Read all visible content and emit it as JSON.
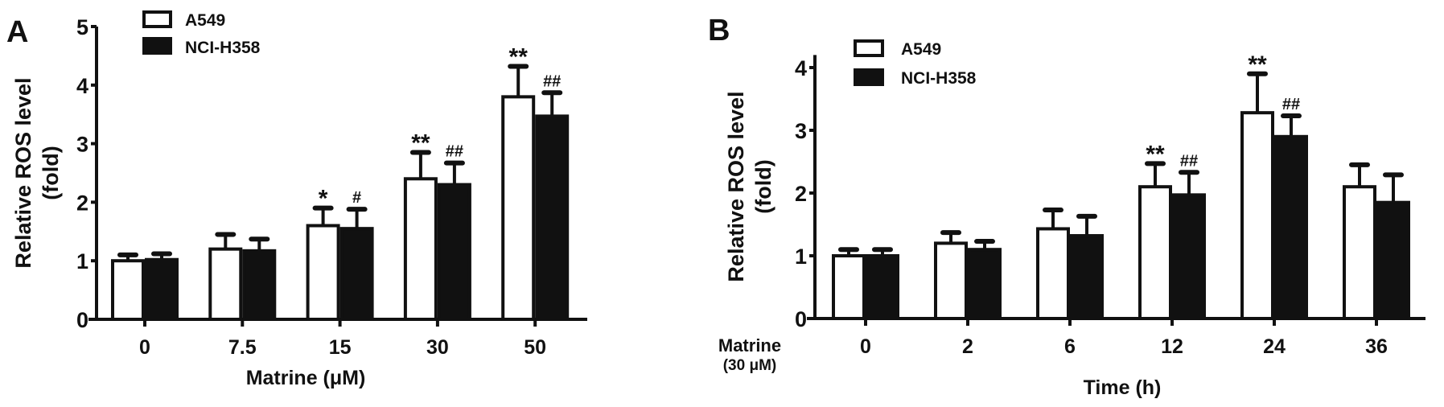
{
  "colors": {
    "A549": "#ffffff",
    "NCI-H358": "#111111",
    "outline": "#111111"
  },
  "chart_data": [
    {
      "panel_label": "A",
      "type": "bar",
      "xlabel": "Matrine (μM)",
      "ylabel": "Relative ROS level",
      "ylabel2": "(fold)",
      "ylim": [
        0,
        5
      ],
      "yticks": [
        "0",
        "1",
        "2",
        "3",
        "4",
        "5"
      ],
      "categories": [
        "0",
        "7.5",
        "15",
        "30",
        "50"
      ],
      "legend_placement": "top-left",
      "series": [
        {
          "name": "A549",
          "values": [
            1.0,
            1.2,
            1.6,
            2.4,
            3.8
          ],
          "errors": [
            0.1,
            0.25,
            0.3,
            0.45,
            0.52
          ],
          "annotations": [
            "",
            "",
            "*",
            "**",
            "**"
          ]
        },
        {
          "name": "NCI-H358",
          "values": [
            1.02,
            1.17,
            1.55,
            2.3,
            3.47
          ],
          "errors": [
            0.1,
            0.2,
            0.33,
            0.37,
            0.4
          ],
          "annotations": [
            "",
            "",
            "#",
            "##",
            "##"
          ]
        }
      ]
    },
    {
      "panel_label": "B",
      "type": "bar",
      "xlabel": "Time (h)",
      "ylabel": "Relative ROS level",
      "ylabel2": "(fold)",
      "row_label": "Matrine",
      "row_label2": "(30 μM)",
      "ylim": [
        0,
        4.2
      ],
      "yticks": [
        "0",
        "1",
        "2",
        "3",
        "4"
      ],
      "categories": [
        "0",
        "2",
        "6",
        "12",
        "24",
        "36"
      ],
      "legend_placement": "top-left",
      "series": [
        {
          "name": "A549",
          "values": [
            1.0,
            1.2,
            1.43,
            2.1,
            3.28,
            2.1
          ],
          "errors": [
            0.1,
            0.17,
            0.3,
            0.37,
            0.62,
            0.35
          ],
          "annotations": [
            "",
            "",
            "",
            "**",
            "**",
            ""
          ]
        },
        {
          "name": "NCI-H358",
          "values": [
            1.0,
            1.1,
            1.32,
            1.97,
            2.9,
            1.85
          ],
          "errors": [
            0.1,
            0.13,
            0.31,
            0.36,
            0.33,
            0.44
          ],
          "annotations": [
            "",
            "",
            "",
            "##",
            "##",
            ""
          ]
        }
      ]
    }
  ]
}
